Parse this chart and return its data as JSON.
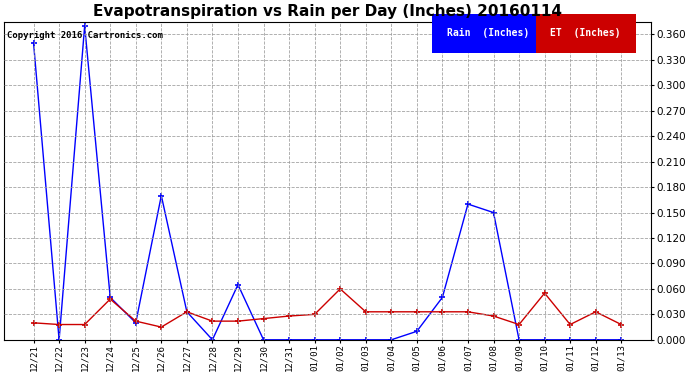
{
  "title": "Evapotranspiration vs Rain per Day (Inches) 20160114",
  "copyright": "Copyright 2016 Cartronics.com",
  "x_labels": [
    "12/21",
    "12/22",
    "12/23",
    "12/24",
    "12/25",
    "12/26",
    "12/27",
    "12/28",
    "12/29",
    "12/30",
    "12/31",
    "01/01",
    "01/02",
    "01/03",
    "01/04",
    "01/05",
    "01/06",
    "01/07",
    "01/08",
    "01/09",
    "01/10",
    "01/11",
    "01/12",
    "01/13"
  ],
  "rain_values": [
    0.35,
    0.0,
    0.37,
    0.05,
    0.02,
    0.17,
    0.033,
    0.0,
    0.065,
    0.0,
    0.0,
    0.0,
    0.0,
    0.0,
    0.0,
    0.01,
    0.05,
    0.16,
    0.15,
    0.0,
    0.0,
    0.0,
    0.0,
    0.0
  ],
  "et_values": [
    0.02,
    0.018,
    0.018,
    0.048,
    0.022,
    0.015,
    0.033,
    0.022,
    0.022,
    0.025,
    0.028,
    0.03,
    0.06,
    0.033,
    0.033,
    0.033,
    0.033,
    0.033,
    0.028,
    0.018,
    0.055,
    0.018,
    0.033,
    0.018
  ],
  "rain_color": "#0000ff",
  "et_color": "#cc0000",
  "ylim": [
    0.0,
    0.375
  ],
  "yticks": [
    0.0,
    0.03,
    0.06,
    0.09,
    0.12,
    0.15,
    0.18,
    0.21,
    0.24,
    0.27,
    0.3,
    0.33,
    0.36
  ],
  "background_color": "#ffffff",
  "grid_color": "#999999",
  "title_fontsize": 11,
  "legend_rain_label": "Rain  (Inches)",
  "legend_et_label": "ET  (Inches)"
}
